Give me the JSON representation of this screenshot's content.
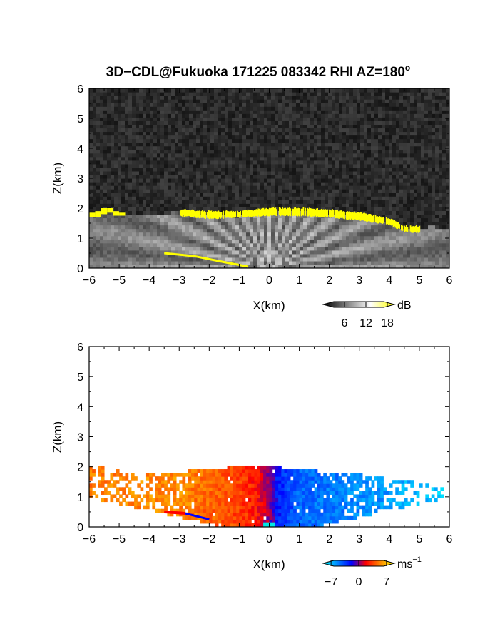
{
  "figure": {
    "title": "3D−CDL@Fukuoka 171225 083342 RHI AZ=180",
    "title_sup": "o"
  },
  "chart_data": [
    {
      "type": "heatmap",
      "quantity": "reflectivity",
      "title": "3D−CDL@Fukuoka 171225 083342 RHI AZ=180°",
      "xlabel": "X(km)",
      "ylabel": "Z(km)",
      "xlim": [
        -6,
        6
      ],
      "ylim": [
        0,
        6
      ],
      "xticks": [
        -6,
        -5,
        -4,
        -3,
        -2,
        -1,
        0,
        1,
        2,
        3,
        4,
        5,
        6
      ],
      "yticks": [
        0,
        1,
        2,
        3,
        4,
        5,
        6
      ],
      "colorbar": {
        "unit": "dB",
        "ticks": [
          6,
          12,
          18
        ],
        "range": [
          0,
          20
        ],
        "colors": [
          "#000000",
          "#808080",
          "#ffffff",
          "#ffff00"
        ]
      },
      "background_noise": true,
      "echo_top_km": [
        [
          -6.0,
          1.75
        ],
        [
          -5.5,
          1.95
        ],
        [
          -5.0,
          1.85
        ],
        [
          -4.0,
          1.75
        ],
        [
          -3.0,
          1.9
        ],
        [
          -2.0,
          1.8
        ],
        [
          -1.0,
          1.85
        ],
        [
          0.0,
          1.95
        ],
        [
          1.0,
          1.95
        ],
        [
          2.0,
          1.85
        ],
        [
          3.0,
          1.75
        ],
        [
          3.5,
          1.6
        ],
        [
          4.0,
          1.55
        ],
        [
          4.5,
          1.3
        ],
        [
          5.0,
          1.35
        ],
        [
          5.5,
          1.4
        ],
        [
          6.0,
          1.25
        ]
      ],
      "strong_layer_band_km": [
        [
          -3.0,
          1.75,
          1.95
        ],
        [
          -2.0,
          1.65,
          1.9
        ],
        [
          -1.0,
          1.7,
          1.9
        ],
        [
          0.0,
          1.75,
          2.0
        ],
        [
          1.0,
          1.75,
          2.0
        ],
        [
          2.0,
          1.7,
          1.95
        ],
        [
          3.0,
          1.6,
          1.85
        ],
        [
          4.0,
          1.45,
          1.65
        ],
        [
          4.5,
          1.2,
          1.4
        ],
        [
          5.0,
          1.2,
          1.4
        ]
      ],
      "surface_streak_km": [
        [
          -3.5,
          0.5
        ],
        [
          -2.5,
          0.4
        ],
        [
          -1.5,
          0.2
        ],
        [
          -0.7,
          0.05
        ]
      ]
    },
    {
      "type": "heatmap",
      "quantity": "doppler_velocity",
      "xlabel": "X(km)",
      "ylabel": "Z(km)",
      "xlim": [
        -6,
        6
      ],
      "ylim": [
        0,
        6
      ],
      "xticks": [
        -6,
        -5,
        -4,
        -3,
        -2,
        -1,
        0,
        1,
        2,
        3,
        4,
        5,
        6
      ],
      "yticks": [
        0,
        1,
        2,
        3,
        4,
        5,
        6
      ],
      "colorbar": {
        "unit": "ms",
        "unit_sup": "−1",
        "ticks": [
          "−7",
          "0",
          "7"
        ],
        "range": [
          -9,
          9
        ],
        "colors": [
          "#00ffff",
          "#0088ff",
          "#0000ff",
          "#ff0000",
          "#ff8800",
          "#ffff00"
        ]
      },
      "velocity_vs_x": [
        [
          -6.0,
          5.0
        ],
        [
          -4.0,
          5.5
        ],
        [
          -3.0,
          5.5
        ],
        [
          -2.0,
          4.5
        ],
        [
          -1.0,
          3.5
        ],
        [
          -0.3,
          2.0
        ],
        [
          0.0,
          0.0
        ],
        [
          0.3,
          -2.5
        ],
        [
          1.0,
          -4.5
        ],
        [
          2.0,
          -5.0
        ],
        [
          3.0,
          -5.5
        ],
        [
          4.0,
          -6.0
        ],
        [
          5.0,
          -7.0
        ],
        [
          6.0,
          -7.5
        ]
      ],
      "echo_top_km": [
        [
          -6.0,
          2.1
        ],
        [
          -5.0,
          1.85
        ],
        [
          -4.0,
          1.8
        ],
        [
          -3.0,
          1.85
        ],
        [
          -2.0,
          1.95
        ],
        [
          -1.0,
          2.0
        ],
        [
          0.0,
          2.0
        ],
        [
          1.0,
          1.95
        ],
        [
          2.0,
          1.8
        ],
        [
          3.0,
          1.75
        ],
        [
          4.0,
          1.65
        ],
        [
          5.0,
          1.45
        ],
        [
          6.0,
          1.2
        ]
      ]
    }
  ]
}
